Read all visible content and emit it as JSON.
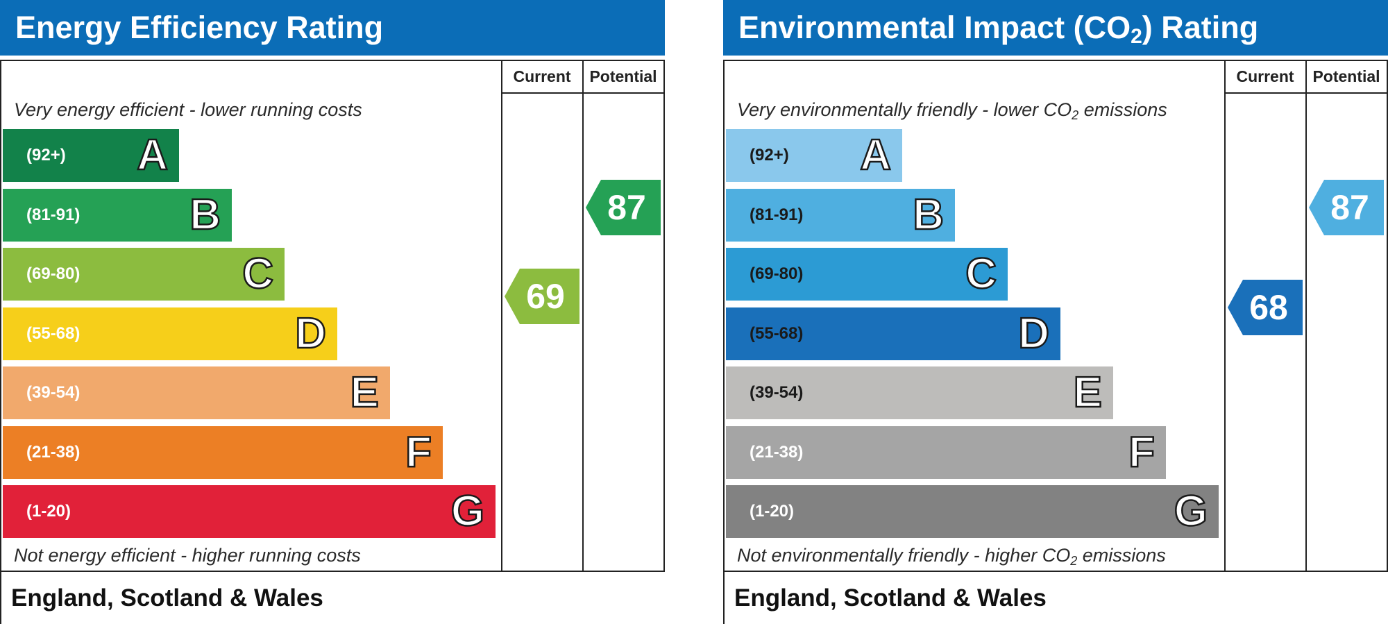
{
  "chart_data": [
    {
      "type": "bar",
      "title": "Energy Efficiency Rating",
      "columns": [
        "Current",
        "Potential"
      ],
      "top_caption": "Very energy efficient - lower running costs",
      "bottom_caption": "Not energy efficient - higher running costs",
      "footer": "England, Scotland & Wales",
      "bands": [
        {
          "range": "(92+)",
          "letter": "A",
          "color": "#12824a"
        },
        {
          "range": "(81-91)",
          "letter": "B",
          "color": "#25a155"
        },
        {
          "range": "(69-80)",
          "letter": "C",
          "color": "#8cbc3f"
        },
        {
          "range": "(55-68)",
          "letter": "D",
          "color": "#f6cf1a"
        },
        {
          "range": "(39-54)",
          "letter": "E",
          "color": "#f1a96c"
        },
        {
          "range": "(21-38)",
          "letter": "F",
          "color": "#ec7f25"
        },
        {
          "range": "(1-20)",
          "letter": "G",
          "color": "#e12139"
        }
      ],
      "current": {
        "value": "69",
        "color": "#8cbc3f"
      },
      "potential": {
        "value": "87",
        "color": "#25a155"
      }
    },
    {
      "type": "bar",
      "title": "Environmental Impact (CO2) Rating",
      "title_parts": {
        "before": "Environmental Impact (CO",
        "sub": "2",
        "after": ") Rating"
      },
      "columns": [
        "Current",
        "Potential"
      ],
      "top_caption": "Very environmentally friendly - lower CO2 emissions",
      "top_caption_parts": {
        "before": "Very environmentally friendly - lower CO",
        "sub": "2",
        "after": " emissions"
      },
      "bottom_caption": "Not environmentally friendly - higher CO2 emissions",
      "bottom_caption_parts": {
        "before": "Not environmentally friendly - higher CO",
        "sub": "2",
        "after": " emissions"
      },
      "footer": "England, Scotland & Wales",
      "bands": [
        {
          "range": "(92+)",
          "letter": "A",
          "color": "#8ac8ec",
          "dark_text": true
        },
        {
          "range": "(81-91)",
          "letter": "B",
          "color": "#4fafe0",
          "dark_text": true
        },
        {
          "range": "(69-80)",
          "letter": "C",
          "color": "#2c9bd4",
          "dark_text": true
        },
        {
          "range": "(55-68)",
          "letter": "D",
          "color": "#1a70ba",
          "dark_text": true
        },
        {
          "range": "(39-54)",
          "letter": "E",
          "color": "#bdbcba",
          "dark_text": true
        },
        {
          "range": "(21-38)",
          "letter": "F",
          "color": "#a5a5a5",
          "dark_text": false
        },
        {
          "range": "(1-20)",
          "letter": "G",
          "color": "#828282",
          "dark_text": false
        }
      ],
      "current": {
        "value": "68",
        "color": "#1a70ba"
      },
      "potential": {
        "value": "87",
        "color": "#4fafe0"
      }
    }
  ]
}
